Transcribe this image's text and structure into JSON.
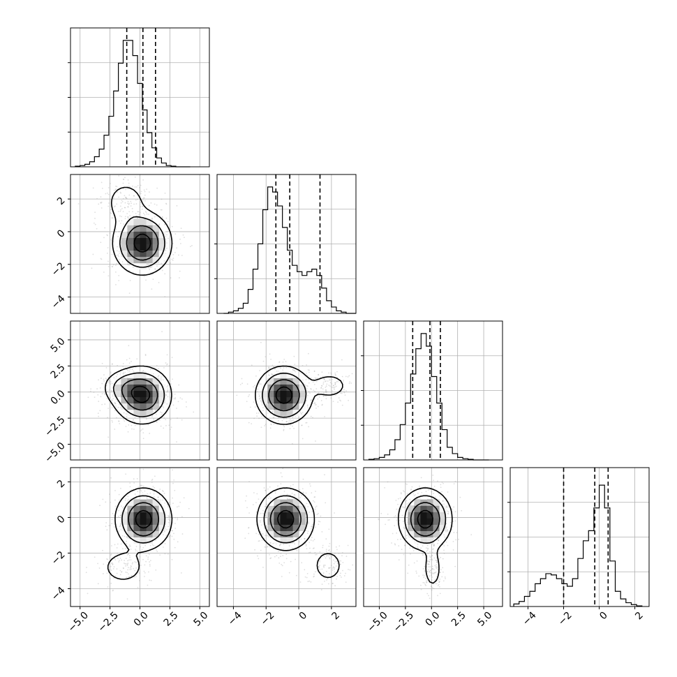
{
  "chart_data": {
    "type": "corner",
    "title": "",
    "variables": 4,
    "grid": true,
    "diagonal_histograms": [
      {
        "variable": 0,
        "xlim": [
          -5.8,
          5.8
        ],
        "bin_edges": [
          -5.4,
          -5.0,
          -4.6,
          -4.2,
          -3.8,
          -3.4,
          -3.0,
          -2.6,
          -2.2,
          -1.8,
          -1.4,
          -1.0,
          -0.6,
          -0.2,
          0.2,
          0.6,
          1.0,
          1.4,
          1.8,
          2.2,
          2.6,
          3.0,
          3.4,
          3.8,
          4.2
        ],
        "counts": [
          0.005,
          0.01,
          0.02,
          0.04,
          0.08,
          0.14,
          0.25,
          0.4,
          0.6,
          0.82,
          1.0,
          1.0,
          0.88,
          0.66,
          0.45,
          0.27,
          0.15,
          0.07,
          0.03,
          0.01,
          0.005,
          0,
          0,
          0
        ],
        "quantile_lines": [
          -1.1,
          0.25,
          1.3
        ]
      },
      {
        "variable": 1,
        "xlim": [
          -5.0,
          3.5
        ],
        "bin_edges": [
          -4.6,
          -4.3,
          -4.0,
          -3.7,
          -3.4,
          -3.1,
          -2.8,
          -2.5,
          -2.2,
          -1.9,
          -1.6,
          -1.3,
          -1.0,
          -0.7,
          -0.4,
          -0.1,
          0.2,
          0.5,
          0.8,
          1.1,
          1.4,
          1.7,
          2.0,
          2.3,
          2.6,
          2.9,
          3.2,
          3.5
        ],
        "counts": [
          0,
          0.01,
          0.02,
          0.04,
          0.08,
          0.19,
          0.35,
          0.55,
          0.82,
          1.0,
          0.96,
          0.85,
          0.68,
          0.5,
          0.38,
          0.33,
          0.3,
          0.33,
          0.35,
          0.3,
          0.2,
          0.1,
          0.05,
          0.02,
          0.01,
          0,
          0
        ],
        "quantile_lines": [
          -1.4,
          -0.55,
          1.3
        ]
      },
      {
        "variable": 2,
        "xlim": [
          -6.5,
          6.8
        ],
        "bin_edges": [
          -6.0,
          -5.5,
          -5.0,
          -4.5,
          -4.0,
          -3.5,
          -3.0,
          -2.5,
          -2.0,
          -1.5,
          -1.0,
          -0.5,
          0.0,
          0.5,
          1.0,
          1.5,
          2.0,
          2.5,
          3.0,
          3.5,
          4.0,
          4.5,
          5.0,
          5.5
        ],
        "counts": [
          0.005,
          0.01,
          0.02,
          0.04,
          0.08,
          0.16,
          0.28,
          0.45,
          0.68,
          0.88,
          1.0,
          0.9,
          0.66,
          0.45,
          0.24,
          0.1,
          0.05,
          0.02,
          0.01,
          0.005,
          0,
          0,
          0
        ],
        "quantile_lines": [
          -1.8,
          -0.15,
          0.85
        ]
      },
      {
        "variable": 3,
        "xlim": [
          -5.0,
          2.8
        ],
        "bin_edges": [
          -4.8,
          -4.5,
          -4.2,
          -3.9,
          -3.6,
          -3.3,
          -3.0,
          -2.7,
          -2.4,
          -2.1,
          -1.8,
          -1.5,
          -1.2,
          -0.9,
          -0.6,
          -0.3,
          0.0,
          0.3,
          0.6,
          0.9,
          1.2,
          1.5,
          1.8,
          2.1,
          2.4
        ],
        "counts": [
          0.02,
          0.04,
          0.08,
          0.12,
          0.18,
          0.22,
          0.26,
          0.25,
          0.22,
          0.18,
          0.16,
          0.22,
          0.38,
          0.52,
          0.6,
          0.78,
          0.96,
          0.78,
          0.36,
          0.12,
          0.06,
          0.03,
          0.015,
          0.005
        ],
        "quantile_lines": [
          -2.0,
          -0.25,
          0.5
        ]
      }
    ],
    "panels": [
      {
        "row": 1,
        "col": 0,
        "xlim": [
          -5.8,
          5.8
        ],
        "ylim": [
          -5.0,
          3.5
        ],
        "components": [
          {
            "cx": 0.2,
            "cy": -0.7,
            "sx": 1.2,
            "sy": 0.95,
            "weight": 0.8
          },
          {
            "cx": -1.2,
            "cy": 1.8,
            "sx": 0.95,
            "sy": 0.75,
            "weight": 0.2
          }
        ]
      },
      {
        "row": 2,
        "col": 0,
        "xlim": [
          -5.8,
          5.8
        ],
        "ylim": [
          -6.5,
          6.8
        ],
        "components": [
          {
            "cx": 0.2,
            "cy": -0.3,
            "sx": 1.2,
            "sy": 1.35,
            "weight": 0.8
          },
          {
            "cx": -1.5,
            "cy": 0.5,
            "sx": 1.0,
            "sy": 0.9,
            "weight": 0.2
          }
        ]
      },
      {
        "row": 2,
        "col": 1,
        "xlim": [
          -5.0,
          3.5
        ],
        "ylim": [
          -6.5,
          6.8
        ],
        "components": [
          {
            "cx": -0.9,
            "cy": -0.3,
            "sx": 0.85,
            "sy": 1.35,
            "weight": 0.8
          },
          {
            "cx": 1.9,
            "cy": 0.6,
            "sx": 0.65,
            "sy": 0.7,
            "weight": 0.2
          }
        ]
      },
      {
        "row": 3,
        "col": 0,
        "xlim": [
          -5.8,
          5.8
        ],
        "ylim": [
          -5.0,
          2.8
        ],
        "components": [
          {
            "cx": 0.3,
            "cy": -0.1,
            "sx": 1.15,
            "sy": 0.85,
            "weight": 0.8
          },
          {
            "cx": -1.4,
            "cy": -2.8,
            "sx": 1.05,
            "sy": 0.55,
            "weight": 0.2
          }
        ]
      },
      {
        "row": 3,
        "col": 1,
        "xlim": [
          -5.0,
          3.5
        ],
        "ylim": [
          -5.0,
          2.8
        ],
        "components": [
          {
            "cx": -0.8,
            "cy": -0.1,
            "sx": 0.85,
            "sy": 0.85,
            "weight": 0.8
          },
          {
            "cx": 1.8,
            "cy": -2.7,
            "sx": 0.55,
            "sy": 0.55,
            "weight": 0.2
          }
        ]
      },
      {
        "row": 3,
        "col": 2,
        "xlim": [
          -6.5,
          6.8
        ],
        "ylim": [
          -5.0,
          2.8
        ],
        "components": [
          {
            "cx": -0.6,
            "cy": -0.1,
            "sx": 1.25,
            "sy": 0.85,
            "weight": 0.8
          },
          {
            "cx": 0.1,
            "cy": -2.9,
            "sx": 0.5,
            "sy": 0.65,
            "weight": 0.2
          }
        ]
      }
    ],
    "contour_levels": [
      0.12,
      0.3,
      0.55,
      0.85
    ],
    "axes": {
      "x_ticks": [
        {
          "col": 0,
          "values": [
            -5.0,
            -2.5,
            0.0,
            2.5,
            5.0
          ],
          "labels": [
            "−5.0",
            "−2.5",
            "0.0",
            "2.5",
            "5.0"
          ]
        },
        {
          "col": 1,
          "values": [
            -4,
            -2,
            0,
            2
          ],
          "labels": [
            "−4",
            "−2",
            "0",
            "2"
          ]
        },
        {
          "col": 2,
          "values": [
            -5.0,
            -2.5,
            0.0,
            2.5,
            5.0
          ],
          "labels": [
            "−5.0",
            "−2.5",
            "0.0",
            "2.5",
            "5.0"
          ]
        },
        {
          "col": 3,
          "values": [
            -4,
            -2,
            0,
            2
          ],
          "labels": [
            "−4",
            "−2",
            "0",
            "2"
          ]
        }
      ],
      "y_ticks": [
        {
          "row": 1,
          "values": [
            2,
            0,
            -2,
            -4
          ],
          "labels": [
            "2",
            "0",
            "−2",
            "−4"
          ]
        },
        {
          "row": 2,
          "values": [
            5.0,
            2.5,
            0.0,
            -2.5,
            -5.0
          ],
          "labels": [
            "5.0",
            "2.5",
            "0.0",
            "−2.5",
            "−5.0"
          ]
        },
        {
          "row": 3,
          "values": [
            2,
            0,
            -2,
            -4
          ],
          "labels": [
            "2",
            "0",
            "−2",
            "−4"
          ]
        }
      ]
    },
    "colors": {
      "line": "#000000",
      "grid": "#b0b0b0",
      "scatter": "#a0a0a0",
      "density_max": "#000000"
    }
  }
}
